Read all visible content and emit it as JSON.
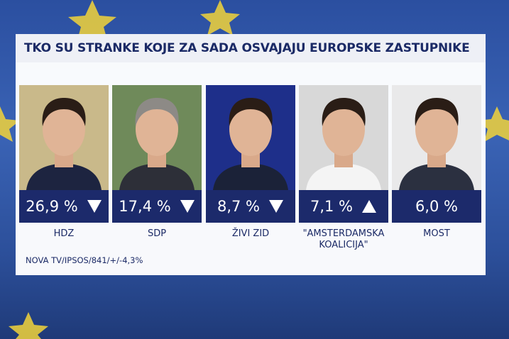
{
  "header": {
    "title": "TKO SU STRANKE KOJE ZA SADA OSVAJAJU EUROPSKE ZASTUPNIKE"
  },
  "parties": [
    {
      "name": "HDZ",
      "result": "26,9 %",
      "trend": "down"
    },
    {
      "name": "SDP",
      "result": "17,4 %",
      "trend": "down"
    },
    {
      "name": "ŽIVI ZID",
      "result": "8,7 %",
      "trend": "down"
    },
    {
      "name": "\"AMSTERDAMSKA KOALICIJA\"",
      "result": "7,1 %",
      "trend": "up"
    },
    {
      "name": "MOST",
      "result": "6,0 %"
    }
  ],
  "footer": {
    "source": "NOVA TV/IPSOS/841/+/-4,3%"
  }
}
